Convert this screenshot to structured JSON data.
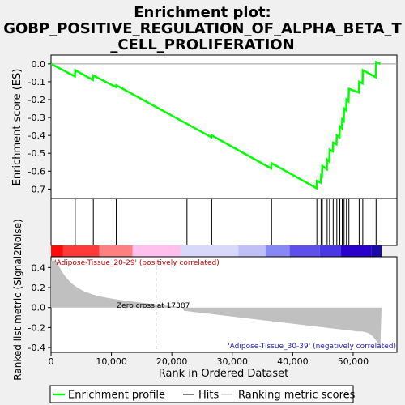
{
  "chart_data": {
    "type": "line",
    "title_lines": [
      "Enrichment plot:",
      "GOBP_POSITIVE_REGULATION_OF_ALPHA_BETA_T",
      "_CELL_PROLIFERATION"
    ],
    "ylabel_top": "Enrichment score (ES)",
    "ylabel_bottom": "Ranked list metric (Signal2Noise)",
    "xlabel": "Rank in Ordered Dataset",
    "x_ticks": [
      0,
      10000,
      20000,
      30000,
      40000,
      50000
    ],
    "x_tick_labels": [
      "0",
      "10,000",
      "20,000",
      "30,000",
      "40,000",
      "50,000"
    ],
    "xlim": [
      0,
      54700
    ],
    "es_ylim": [
      -0.73,
      0.04
    ],
    "es_ticks": [
      0.0,
      -0.1,
      -0.2,
      -0.3,
      -0.4,
      -0.5,
      -0.6,
      -0.7
    ],
    "es_tick_labels": [
      "0.0",
      "-0.1",
      "-0.2",
      "-0.3",
      "-0.4",
      "-0.5",
      "-0.6",
      "-0.7"
    ],
    "metric_ylim": [
      -0.44,
      0.5
    ],
    "metric_ticks": [
      0.4,
      0.2,
      0.0,
      -0.2,
      -0.4
    ],
    "metric_tick_labels": [
      "0.4",
      "0.2",
      "0.0",
      "-0.2",
      "-0.4"
    ],
    "hits": [
      4000,
      7000,
      10800,
      22500,
      26600,
      36500,
      44000,
      44700,
      44900,
      45700,
      46100,
      46700,
      47300,
      47800,
      48200,
      48500,
      48900,
      49300,
      51000,
      51600,
      53800
    ],
    "es_points": [
      [
        0,
        0.0
      ],
      [
        3950,
        -0.07
      ],
      [
        4000,
        -0.035
      ],
      [
        6950,
        -0.09
      ],
      [
        7000,
        -0.065
      ],
      [
        10750,
        -0.13
      ],
      [
        10800,
        -0.12
      ],
      [
        26550,
        -0.41
      ],
      [
        26600,
        -0.4
      ],
      [
        36450,
        -0.585
      ],
      [
        36500,
        -0.555
      ],
      [
        43950,
        -0.695
      ],
      [
        44000,
        -0.655
      ],
      [
        44650,
        -0.665
      ],
      [
        44700,
        -0.625
      ],
      [
        44850,
        -0.63
      ],
      [
        44900,
        -0.57
      ],
      [
        45650,
        -0.59
      ],
      [
        45700,
        -0.535
      ],
      [
        46050,
        -0.545
      ],
      [
        46100,
        -0.48
      ],
      [
        46650,
        -0.49
      ],
      [
        46700,
        -0.44
      ],
      [
        47250,
        -0.45
      ],
      [
        47300,
        -0.4
      ],
      [
        47750,
        -0.41
      ],
      [
        47800,
        -0.35
      ],
      [
        48150,
        -0.36
      ],
      [
        48200,
        -0.31
      ],
      [
        48450,
        -0.32
      ],
      [
        48500,
        -0.25
      ],
      [
        48850,
        -0.26
      ],
      [
        48900,
        -0.2
      ],
      [
        49250,
        -0.21
      ],
      [
        49300,
        -0.14
      ],
      [
        50950,
        -0.16
      ],
      [
        51000,
        -0.1
      ],
      [
        51550,
        -0.11
      ],
      [
        51600,
        -0.035
      ],
      [
        53750,
        -0.075
      ],
      [
        53800,
        0.01
      ],
      [
        54500,
        0.0
      ]
    ],
    "zero_cross_rank": 17387,
    "zero_cross_label": "Zero cross at 17387",
    "pos_label": "'Adipose-Tissue_20-29' (positively correlated)",
    "neg_label": "'Adipose-Tissue_30-39' (negatively correlated)",
    "legend": [
      "Enrichment profile",
      "Hits",
      "Ranking metric scores"
    ],
    "colors": {
      "es_line": "#00ff00",
      "hit": "#000000",
      "metric_fill": "#c0c0c0",
      "pos_text": "#cc0000",
      "neg_text": "#2222cc"
    },
    "heatmap_bands": [
      {
        "from": 0,
        "to": 2000,
        "color": "#ff0a0a"
      },
      {
        "from": 2000,
        "to": 8000,
        "color": "#ff3a3a"
      },
      {
        "from": 8000,
        "to": 13500,
        "color": "#ff8080"
      },
      {
        "from": 13500,
        "to": 21500,
        "color": "#ffc0ee"
      },
      {
        "from": 21500,
        "to": 31000,
        "color": "#d8d8fa"
      },
      {
        "from": 31000,
        "to": 35500,
        "color": "#c0c0f6"
      },
      {
        "from": 35500,
        "to": 39500,
        "color": "#8888f4"
      },
      {
        "from": 39500,
        "to": 44500,
        "color": "#6050ea"
      },
      {
        "from": 44500,
        "to": 48000,
        "color": "#4a36e4"
      },
      {
        "from": 48000,
        "to": 53000,
        "color": "#2a00cc"
      },
      {
        "from": 53000,
        "to": 54700,
        "color": "#1a0aa8"
      }
    ]
  }
}
